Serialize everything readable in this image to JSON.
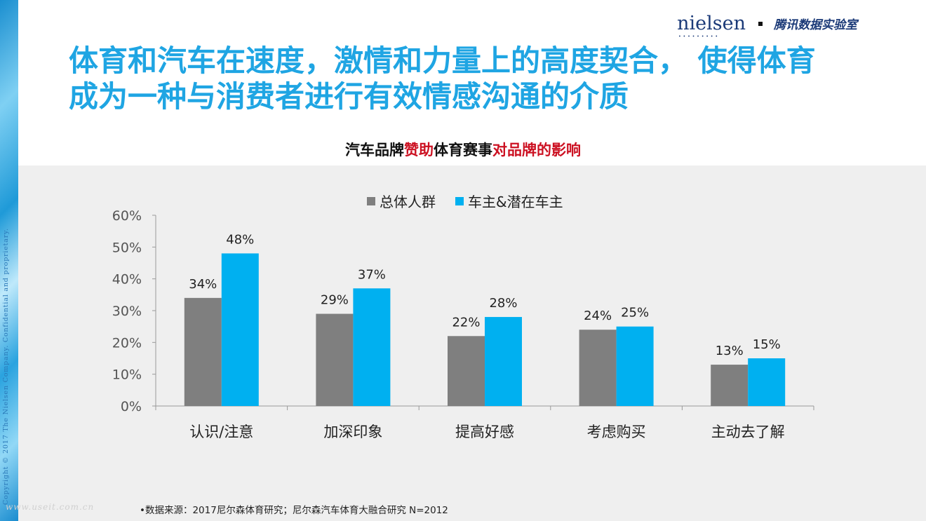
{
  "header": {
    "brand_logo": "nielsen",
    "brand_dots": "•••••••••",
    "partner": "腾讯数据实验室"
  },
  "main_title": "体育和汽车在速度，激情和力量上的高度契合， 使得体育\n成为一种与消费者进行有效情感沟通的介质",
  "chart_title": {
    "part1": "汽车品牌",
    "part2": "赞助",
    "part3": "体育赛事",
    "part4": "对品牌的影响"
  },
  "copyright": "Copyright © 2017 The Nielsen Company. Confidential and proprietary.",
  "source_note": "•数据来源：2017尼尔森体育研究；尼尔森汽车体育大融合研究 N=2012",
  "watermark": "www.useit.com.cn",
  "colors": {
    "title_blue": "#1fa5e3",
    "highlight_red": "#cc1122",
    "series_gray": "#7f7f7f",
    "series_blue": "#00b0f0",
    "panel_bg": "#efefef"
  },
  "chart_data": {
    "type": "bar",
    "title": "汽车品牌赞助体育赛事对品牌的影响",
    "categories": [
      "认识/注意",
      "加深印象",
      "提高好感",
      "考虑购买",
      "主动去了解"
    ],
    "series": [
      {
        "name": "总体人群",
        "values": [
          34,
          29,
          22,
          24,
          13
        ],
        "color": "#7f7f7f"
      },
      {
        "name": "车主&潜在车主",
        "values": [
          48,
          37,
          28,
          25,
          15
        ],
        "color": "#00b0f0"
      }
    ],
    "ylim": [
      0,
      60
    ],
    "yticks": [
      "0%",
      "10%",
      "20%",
      "30%",
      "40%",
      "50%",
      "60%"
    ],
    "value_suffix": "%",
    "legend_position": "top-center",
    "grid": false
  }
}
